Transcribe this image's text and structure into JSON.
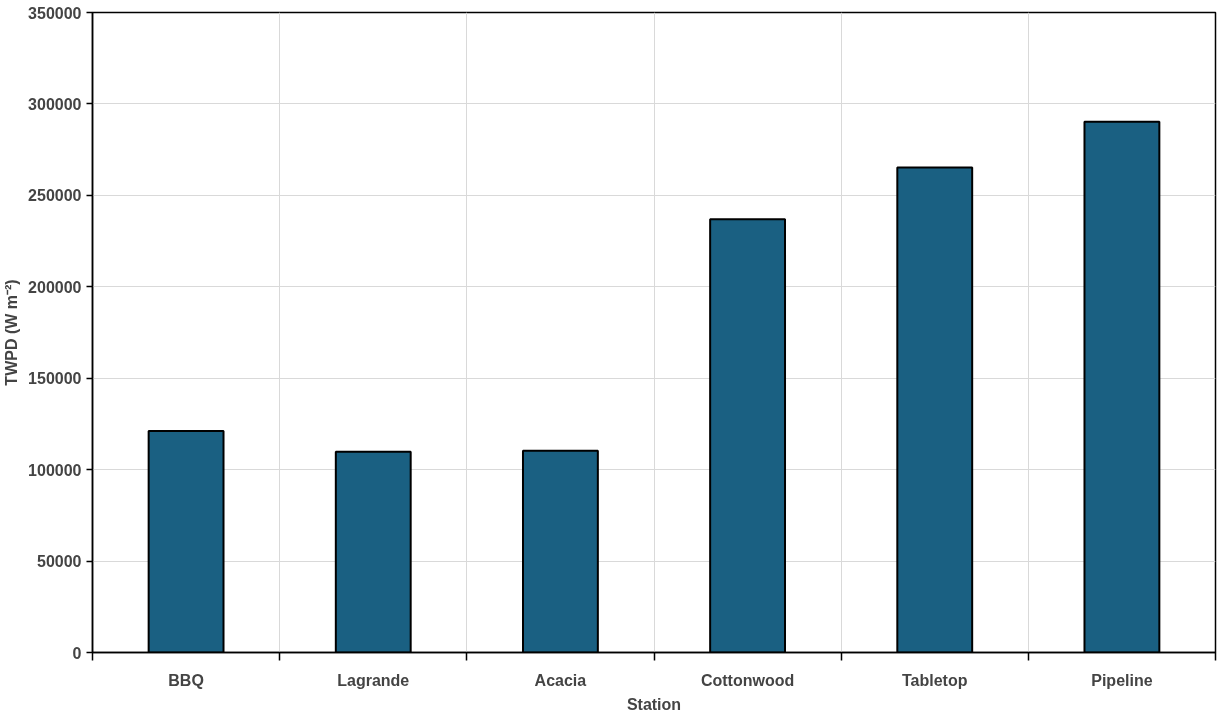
{
  "chart_data": {
    "type": "bar",
    "xlabel": "Station",
    "ylabel": "TWPD (W m⁻²)",
    "categories": [
      "BBQ",
      "Lagrande",
      "Acacia",
      "Cottonwood",
      "Tabletop",
      "Pipeline"
    ],
    "values": [
      121100,
      109800,
      110300,
      236900,
      265200,
      290200
    ],
    "color": "#1a6082",
    "ylim": [
      0,
      350000
    ],
    "yticks": [
      0,
      50000,
      100000,
      150000,
      200000,
      250000,
      300000,
      350000
    ],
    "grid": true
  }
}
